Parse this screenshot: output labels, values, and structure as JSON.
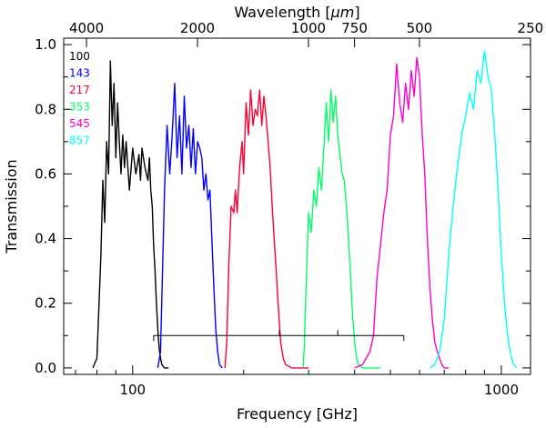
{
  "chart_data": {
    "type": "line",
    "title": "",
    "xlabel": "Frequency [GHz]",
    "ylabel": "Transmission",
    "top_axis_label_prefix": "Wavelength [",
    "top_axis_label_unit": "μm",
    "top_axis_label_suffix": "]",
    "xscale": "log",
    "xlim": [
      65,
      1200
    ],
    "ylim": [
      -0.02,
      1.02
    ],
    "bottom_ticks": [
      {
        "value": 100,
        "label": "100"
      },
      {
        "value": 1000,
        "label": "1000"
      }
    ],
    "top_ticks": [
      {
        "wavelength": 4000,
        "label": "4000"
      },
      {
        "wavelength": 2000,
        "label": "2000"
      },
      {
        "wavelength": 1000,
        "label": "1000"
      },
      {
        "wavelength": 750,
        "label": "750"
      },
      {
        "wavelength": 500,
        "label": "500"
      },
      {
        "wavelength": 250,
        "label": "250"
      }
    ],
    "y_ticks": [
      {
        "value": 0.0,
        "label": "0.0"
      },
      {
        "value": 0.2,
        "label": "0.2"
      },
      {
        "value": 0.4,
        "label": "0.4"
      },
      {
        "value": 0.6,
        "label": "0.6"
      },
      {
        "value": 0.8,
        "label": "0.8"
      },
      {
        "value": 1.0,
        "label": "1.0"
      }
    ],
    "legend_position": "top-left",
    "series": [
      {
        "name": "100",
        "color": "#000000",
        "x": [
          78,
          80,
          82,
          83,
          84,
          85,
          86,
          87,
          88,
          89,
          90,
          91,
          92,
          93,
          94,
          95,
          96,
          98,
          100,
          102,
          104,
          105,
          106,
          108,
          110,
          111,
          112,
          113,
          114,
          115,
          116,
          117,
          118,
          119,
          120,
          122,
          125
        ],
        "y": [
          0.0,
          0.03,
          0.35,
          0.58,
          0.45,
          0.7,
          0.6,
          0.95,
          0.75,
          0.88,
          0.65,
          0.82,
          0.7,
          0.6,
          0.72,
          0.62,
          0.7,
          0.55,
          0.68,
          0.6,
          0.66,
          0.58,
          0.68,
          0.62,
          0.58,
          0.65,
          0.55,
          0.5,
          0.38,
          0.3,
          0.2,
          0.12,
          0.06,
          0.03,
          0.01,
          0.0,
          0.0
        ]
      },
      {
        "name": "143",
        "color": "#0000ff",
        "x": [
          117,
          119,
          120,
          122,
          124,
          126,
          128,
          130,
          132,
          134,
          136,
          138,
          140,
          142,
          144,
          146,
          148,
          150,
          152,
          154,
          156,
          158,
          160,
          162,
          164,
          166,
          168,
          170,
          172,
          175
        ],
        "y": [
          0.0,
          0.05,
          0.22,
          0.55,
          0.75,
          0.6,
          0.72,
          0.88,
          0.65,
          0.78,
          0.6,
          0.84,
          0.68,
          0.75,
          0.62,
          0.74,
          0.6,
          0.7,
          0.68,
          0.65,
          0.55,
          0.6,
          0.52,
          0.55,
          0.4,
          0.25,
          0.12,
          0.05,
          0.01,
          0.0
        ]
      },
      {
        "name": "217",
        "color": "#ff0033",
        "x": [
          178,
          180,
          182,
          185,
          188,
          190,
          192,
          195,
          198,
          200,
          203,
          206,
          209,
          212,
          215,
          218,
          221,
          224,
          227,
          230,
          233,
          236,
          239,
          242,
          245,
          248,
          252,
          256,
          260,
          270,
          300
        ],
        "y": [
          0.0,
          0.08,
          0.3,
          0.5,
          0.48,
          0.55,
          0.48,
          0.62,
          0.7,
          0.6,
          0.82,
          0.72,
          0.86,
          0.75,
          0.8,
          0.78,
          0.86,
          0.75,
          0.84,
          0.78,
          0.7,
          0.62,
          0.5,
          0.4,
          0.3,
          0.2,
          0.08,
          0.03,
          0.01,
          0.0,
          0.0
        ]
      },
      {
        "name": "353",
        "color": "#00ff66",
        "x": [
          290,
          292,
          296,
          300,
          305,
          310,
          315,
          320,
          325,
          330,
          335,
          340,
          345,
          350,
          355,
          360,
          365,
          370,
          375,
          380,
          385,
          390,
          395,
          400,
          405,
          410,
          420,
          440,
          470
        ],
        "y": [
          0.0,
          0.06,
          0.28,
          0.48,
          0.42,
          0.55,
          0.5,
          0.62,
          0.55,
          0.68,
          0.82,
          0.7,
          0.86,
          0.76,
          0.84,
          0.72,
          0.66,
          0.6,
          0.58,
          0.5,
          0.4,
          0.28,
          0.16,
          0.08,
          0.03,
          0.01,
          0.0,
          0.0,
          0.0
        ]
      },
      {
        "name": "545",
        "color": "#ff00cc",
        "x": [
          400,
          420,
          440,
          450,
          460,
          470,
          480,
          490,
          500,
          510,
          520,
          530,
          540,
          550,
          560,
          570,
          580,
          590,
          600,
          610,
          620,
          630,
          640,
          650,
          660,
          670,
          680,
          690,
          700,
          720
        ],
        "y": [
          0.0,
          0.01,
          0.05,
          0.1,
          0.28,
          0.38,
          0.48,
          0.55,
          0.72,
          0.78,
          0.94,
          0.82,
          0.76,
          0.88,
          0.8,
          0.92,
          0.84,
          0.96,
          0.9,
          0.72,
          0.6,
          0.4,
          0.25,
          0.15,
          0.08,
          0.05,
          0.03,
          0.01,
          0.0,
          0.0
        ]
      },
      {
        "name": "857",
        "color": "#00ffff",
        "x": [
          640,
          660,
          680,
          700,
          720,
          740,
          760,
          780,
          800,
          820,
          840,
          860,
          880,
          900,
          920,
          940,
          960,
          980,
          1000,
          1020,
          1040,
          1060,
          1080,
          1100
        ],
        "y": [
          0.0,
          0.01,
          0.05,
          0.15,
          0.35,
          0.5,
          0.62,
          0.72,
          0.78,
          0.85,
          0.8,
          0.92,
          0.88,
          0.98,
          0.9,
          0.86,
          0.72,
          0.55,
          0.35,
          0.2,
          0.1,
          0.04,
          0.01,
          0.0
        ]
      }
    ],
    "bracket": {
      "y": 0.1,
      "x_start": 114,
      "x_end": 544,
      "inner_ticks_x": [
        250,
        360
      ]
    }
  }
}
